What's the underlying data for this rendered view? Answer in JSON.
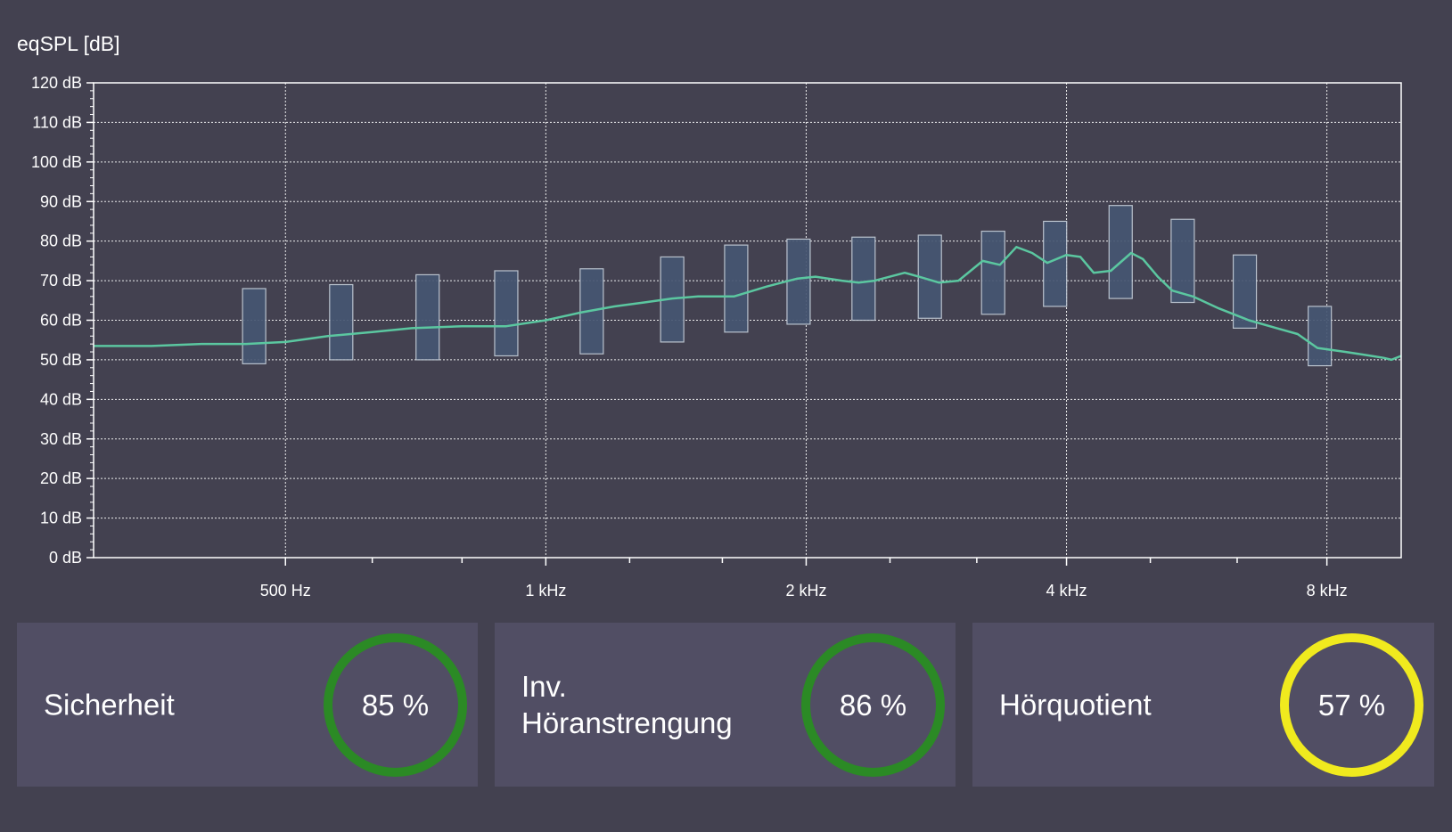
{
  "chart_data": {
    "type": "line",
    "ylabel": "eqSPL [dB]",
    "xlabel": "",
    "xscale": "log",
    "xlim": [
      300,
      9750
    ],
    "ylim": [
      0,
      120
    ],
    "grid": true,
    "colors": {
      "curve": "#5bc7a0",
      "band_fill": "#465672",
      "band_stroke": "#c4cdd8",
      "axis": "#ffffff",
      "grid": "#ffffff"
    },
    "y_ticks": [
      {
        "value": 0,
        "label": "0 dB"
      },
      {
        "value": 10,
        "label": "10 dB"
      },
      {
        "value": 20,
        "label": "20 dB"
      },
      {
        "value": 30,
        "label": "30 dB"
      },
      {
        "value": 40,
        "label": "40 dB"
      },
      {
        "value": 50,
        "label": "50 dB"
      },
      {
        "value": 60,
        "label": "60 dB"
      },
      {
        "value": 70,
        "label": "70 dB"
      },
      {
        "value": 80,
        "label": "80 dB"
      },
      {
        "value": 90,
        "label": "90 dB"
      },
      {
        "value": 100,
        "label": "100 dB"
      },
      {
        "value": 110,
        "label": "110 dB"
      },
      {
        "value": 120,
        "label": "120 dB"
      }
    ],
    "x_ticks": [
      {
        "value": 500,
        "label": "500 Hz"
      },
      {
        "value": 1000,
        "label": "1 kHz"
      },
      {
        "value": 2000,
        "label": "2 kHz"
      },
      {
        "value": 4000,
        "label": "4 kHz"
      },
      {
        "value": 8000,
        "label": "8 kHz"
      }
    ],
    "x_minor_ticks": [
      630,
      800,
      1250,
      1600,
      2500,
      3150,
      5000,
      6300
    ],
    "series": [
      {
        "type": "line",
        "points": [
          [
            300,
            53.5
          ],
          [
            350,
            53.5
          ],
          [
            400,
            54
          ],
          [
            450,
            54
          ],
          [
            500,
            54.5
          ],
          [
            560,
            56
          ],
          [
            630,
            57
          ],
          [
            700,
            58
          ],
          [
            800,
            58.5
          ],
          [
            900,
            58.5
          ],
          [
            1000,
            60
          ],
          [
            1100,
            62
          ],
          [
            1200,
            63.5
          ],
          [
            1300,
            64.5
          ],
          [
            1400,
            65.5
          ],
          [
            1500,
            66
          ],
          [
            1650,
            66
          ],
          [
            1800,
            68.5
          ],
          [
            1950,
            70.5
          ],
          [
            2050,
            71
          ],
          [
            2200,
            70
          ],
          [
            2300,
            69.5
          ],
          [
            2400,
            70
          ],
          [
            2600,
            72
          ],
          [
            2700,
            71
          ],
          [
            2850,
            69.5
          ],
          [
            3000,
            70
          ],
          [
            3200,
            75
          ],
          [
            3350,
            74
          ],
          [
            3500,
            78.5
          ],
          [
            3650,
            77
          ],
          [
            3800,
            74.5
          ],
          [
            4000,
            76.5
          ],
          [
            4150,
            76
          ],
          [
            4300,
            72
          ],
          [
            4500,
            72.5
          ],
          [
            4750,
            77
          ],
          [
            4900,
            75.5
          ],
          [
            5100,
            71
          ],
          [
            5300,
            67.5
          ],
          [
            5600,
            66
          ],
          [
            6000,
            63
          ],
          [
            6500,
            60
          ],
          [
            7000,
            58
          ],
          [
            7400,
            56.5
          ],
          [
            7800,
            53
          ],
          [
            8400,
            52
          ],
          [
            9000,
            51
          ],
          [
            9300,
            50.5
          ],
          [
            9500,
            50
          ],
          [
            9750,
            51
          ]
        ]
      }
    ],
    "bands": [
      {
        "freq": 460,
        "low": 49,
        "high": 68
      },
      {
        "freq": 580,
        "low": 50,
        "high": 69
      },
      {
        "freq": 730,
        "low": 50,
        "high": 71.5
      },
      {
        "freq": 900,
        "low": 51,
        "high": 72.5
      },
      {
        "freq": 1130,
        "low": 51.5,
        "high": 73
      },
      {
        "freq": 1400,
        "low": 54.5,
        "high": 76
      },
      {
        "freq": 1660,
        "low": 57,
        "high": 79
      },
      {
        "freq": 1960,
        "low": 59,
        "high": 80.5
      },
      {
        "freq": 2330,
        "low": 60,
        "high": 81
      },
      {
        "freq": 2780,
        "low": 60.5,
        "high": 81.5
      },
      {
        "freq": 3290,
        "low": 61.5,
        "high": 82.5
      },
      {
        "freq": 3880,
        "low": 63.5,
        "high": 85
      },
      {
        "freq": 4620,
        "low": 65.5,
        "high": 89
      },
      {
        "freq": 5450,
        "low": 64.5,
        "high": 85.5
      },
      {
        "freq": 6430,
        "low": 58,
        "high": 76.5
      },
      {
        "freq": 7850,
        "low": 48.5,
        "high": 63.5
      }
    ]
  },
  "metrics": [
    {
      "label": "Sicherheit",
      "value": "85 %",
      "ring_color": "#2b8a25"
    },
    {
      "label": "Inv.\nHöranstrengung",
      "value": "86 %",
      "ring_color": "#2b8a25"
    },
    {
      "label": "Hörquotient",
      "value": "57 %",
      "ring_color": "#f0ea1e"
    }
  ]
}
